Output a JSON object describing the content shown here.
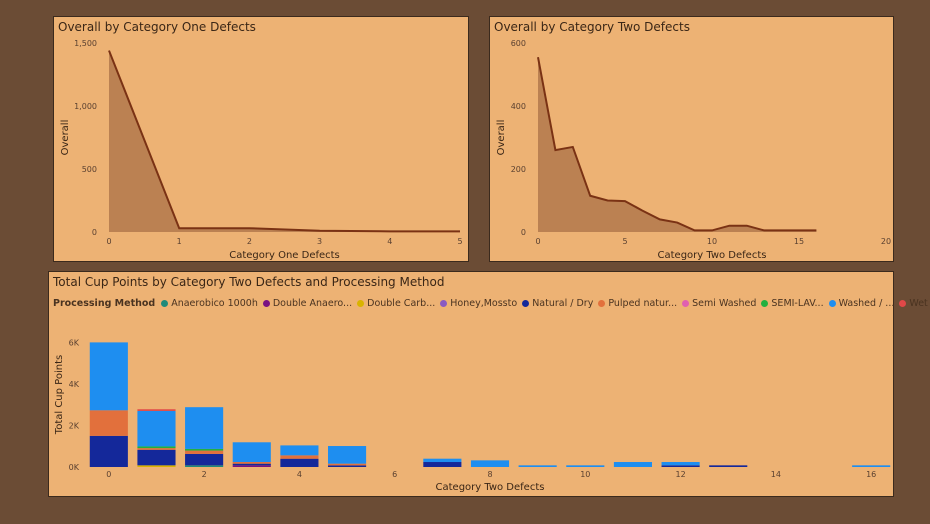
{
  "chart_data": [
    {
      "type": "area",
      "title": "Overall by Category One Defects",
      "xlabel": "Category One Defects",
      "ylabel": "Overall",
      "xlim": [
        0,
        5
      ],
      "ylim": [
        0,
        1500
      ],
      "xticks": [
        "0",
        "1",
        "2",
        "3",
        "4",
        "5"
      ],
      "yticks": [
        "0",
        "500",
        "1,000",
        "1,500"
      ],
      "x": [
        0,
        1,
        2,
        3,
        4,
        5
      ],
      "values": [
        1440,
        30,
        30,
        10,
        5,
        5
      ],
      "colors": {
        "fill": "#bb8152",
        "line": "#7a3214"
      }
    },
    {
      "type": "area",
      "title": "Overall by Category Two Defects",
      "xlabel": "Category Two Defects",
      "ylabel": "Overall",
      "xlim": [
        0,
        20
      ],
      "ylim": [
        0,
        600
      ],
      "xticks": [
        "0",
        "5",
        "10",
        "15",
        "20"
      ],
      "yticks": [
        "0",
        "200",
        "400",
        "600"
      ],
      "x": [
        0,
        1,
        2,
        3,
        4,
        5,
        6,
        7,
        8,
        9,
        10,
        11,
        12,
        13,
        14,
        15,
        16
      ],
      "values": [
        555,
        260,
        270,
        115,
        100,
        98,
        68,
        40,
        30,
        5,
        5,
        20,
        20,
        5,
        5,
        5,
        5
      ],
      "colors": {
        "fill": "#bb8152",
        "line": "#7a3214"
      }
    },
    {
      "type": "bar",
      "title": "Total Cup Points by Category Two Defects and Processing Method",
      "xlabel": "Category Two Defects",
      "ylabel": "Total Cup Points",
      "legend_title": "Processing Method",
      "ylim": [
        0,
        6500
      ],
      "yticks": [
        "0K",
        "2K",
        "4K",
        "6K"
      ],
      "xticks": [
        "0",
        "2",
        "4",
        "6",
        "8",
        "10",
        "12",
        "14",
        "16"
      ],
      "xlim": [
        -0.5,
        16.5
      ],
      "categories": [
        0,
        1,
        2,
        3,
        4,
        5,
        7,
        8,
        9,
        10,
        11,
        12,
        13,
        16
      ],
      "series": [
        {
          "name": "Anaerobico 1000h",
          "color": "#1f8a7a",
          "values": [
            0,
            0,
            80,
            0,
            0,
            0,
            0,
            0,
            0,
            0,
            0,
            0,
            0,
            0
          ]
        },
        {
          "name": "Double Anaero...",
          "color": "#7a1282",
          "values": [
            0,
            0,
            0,
            80,
            0,
            0,
            0,
            0,
            0,
            0,
            0,
            0,
            0,
            0
          ]
        },
        {
          "name": "Double Carb...",
          "color": "#d9b300",
          "values": [
            0,
            80,
            0,
            0,
            0,
            0,
            0,
            0,
            0,
            0,
            0,
            0,
            0,
            0
          ]
        },
        {
          "name": "Honey,Mossto",
          "color": "#8a5ac2",
          "values": [
            0,
            0,
            0,
            0,
            0,
            0,
            0,
            0,
            0,
            0,
            0,
            0,
            0,
            0
          ]
        },
        {
          "name": "Natural / Dry",
          "color": "#14289a",
          "values": [
            1500,
            750,
            550,
            80,
            400,
            80,
            240,
            0,
            0,
            0,
            0,
            80,
            80,
            0
          ]
        },
        {
          "name": "Pulped natur...",
          "color": "#e2703c",
          "values": [
            1230,
            80,
            160,
            80,
            160,
            80,
            0,
            0,
            0,
            0,
            0,
            0,
            0,
            0
          ]
        },
        {
          "name": "Semi Washed",
          "color": "#e060b0",
          "values": [
            0,
            0,
            0,
            0,
            0,
            0,
            0,
            0,
            0,
            0,
            0,
            0,
            0,
            0
          ]
        },
        {
          "name": "SEMI-LAV...",
          "color": "#22b040",
          "values": [
            0,
            80,
            80,
            0,
            0,
            0,
            0,
            0,
            0,
            0,
            0,
            0,
            0,
            0
          ]
        },
        {
          "name": "Washed / ...",
          "color": "#1e8ef0",
          "values": [
            3270,
            1710,
            2010,
            950,
            480,
            850,
            160,
            320,
            80,
            80,
            240,
            160,
            0,
            80
          ]
        },
        {
          "name": "Wet Hulling",
          "color": "#e04848",
          "values": [
            0,
            80,
            0,
            0,
            0,
            0,
            0,
            0,
            0,
            0,
            0,
            0,
            0,
            0
          ]
        }
      ]
    }
  ]
}
